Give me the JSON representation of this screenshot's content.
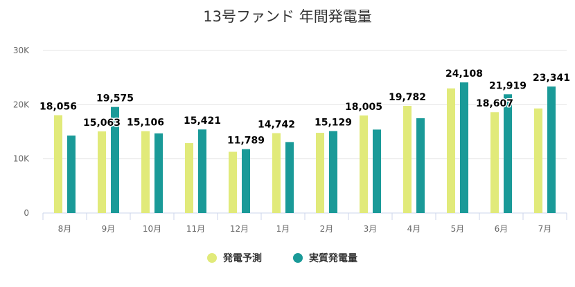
{
  "chart_data": {
    "type": "bar",
    "title": "13号ファンド 年間発電量",
    "categories": [
      "8月",
      "9月",
      "10月",
      "11月",
      "12月",
      "1月",
      "2月",
      "3月",
      "4月",
      "5月",
      "6月",
      "7月"
    ],
    "series": [
      {
        "name": "発電予測",
        "color": "#e1ea7a",
        "values": [
          18056,
          15063,
          15106,
          12900,
          11300,
          14742,
          14800,
          18005,
          19782,
          23000,
          18607,
          19300
        ]
      },
      {
        "name": "実質発電量",
        "color": "#1a9a98",
        "values": [
          14300,
          19575,
          14700,
          15421,
          11789,
          13100,
          15129,
          15400,
          17500,
          24108,
          21919,
          23341
        ]
      }
    ],
    "data_labels": [
      {
        "category": 0,
        "series": 0,
        "text": "18,056"
      },
      {
        "category": 1,
        "series": 0,
        "text": "15,063"
      },
      {
        "category": 1,
        "series": 1,
        "text": "19,575"
      },
      {
        "category": 2,
        "series": 0,
        "text": "15,106"
      },
      {
        "category": 3,
        "series": 1,
        "text": "15,421"
      },
      {
        "category": 4,
        "series": 1,
        "text": "11,789"
      },
      {
        "category": 5,
        "series": 0,
        "text": "14,742"
      },
      {
        "category": 6,
        "series": 1,
        "text": "15,129"
      },
      {
        "category": 7,
        "series": 0,
        "text": "18,005"
      },
      {
        "category": 8,
        "series": 0,
        "text": "19,782"
      },
      {
        "category": 9,
        "series": 1,
        "text": "24,108"
      },
      {
        "category": 10,
        "series": 0,
        "text": "18,607"
      },
      {
        "category": 10,
        "series": 1,
        "text": "21,919"
      },
      {
        "category": 11,
        "series": 1,
        "text": "23,341"
      }
    ],
    "ylim": [
      0,
      30000
    ],
    "yticks": [
      {
        "value": 0,
        "label": "0"
      },
      {
        "value": 10000,
        "label": "10K"
      },
      {
        "value": 20000,
        "label": "20K"
      },
      {
        "value": 30000,
        "label": "30K"
      }
    ],
    "xlabel": "",
    "ylabel": "",
    "grid": true,
    "legend_position": "bottom"
  }
}
